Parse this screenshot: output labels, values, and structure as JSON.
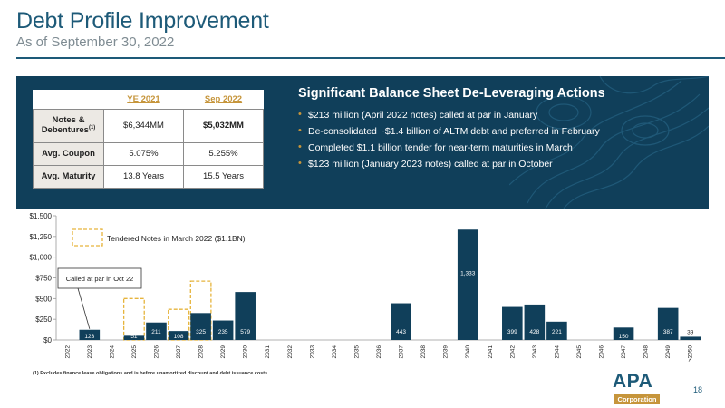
{
  "header": {
    "title": "Debt Profile Improvement",
    "subtitle": "As of September 30, 2022"
  },
  "stats_table": {
    "columns": [
      "YE 2021",
      "Sep 2022"
    ],
    "rows": [
      {
        "label": "Notes & Debentures",
        "footnote_mark": "(1)",
        "ye2021": "$6,344MM",
        "sep2022": "$5,032MM"
      },
      {
        "label": "Avg. Coupon",
        "footnote_mark": "",
        "ye2021": "5.075%",
        "sep2022": "5.255%"
      },
      {
        "label": "Avg. Maturity",
        "footnote_mark": "",
        "ye2021": "13.8 Years",
        "sep2022": "15.5 Years"
      }
    ]
  },
  "actions": {
    "title": "Significant Balance Sheet De-Leveraging Actions",
    "bullets": [
      "$213 million (April 2022 notes) called at par in January",
      "De-consolidated ~$1.4 billion of ALTM debt and preferred in February",
      "Completed $1.1 billion tender for near-term maturities in March",
      "$123 million (January 2023 notes) called at par in October"
    ]
  },
  "chart_data": {
    "type": "bar",
    "categories": [
      "2022",
      "2023",
      "2024",
      "2025",
      "2026",
      "2027",
      "2028",
      "2029",
      "2030",
      "2031",
      "2032",
      "2033",
      "2034",
      "2035",
      "2036",
      "2037",
      "2038",
      "2039",
      "2040",
      "2041",
      "2042",
      "2043",
      "2044",
      "2045",
      "2046",
      "2047",
      "2048",
      "2049",
      ">2050"
    ],
    "values": [
      0,
      123,
      0,
      51,
      211,
      108,
      325,
      235,
      579,
      0,
      0,
      0,
      0,
      0,
      0,
      443,
      0,
      0,
      1333,
      0,
      399,
      428,
      221,
      0,
      0,
      150,
      0,
      387,
      39
    ],
    "labels": [
      "",
      "123",
      "",
      "51",
      "211",
      "108",
      "325",
      "235",
      "579",
      "",
      "",
      "",
      "",
      "",
      "",
      "443",
      "",
      "",
      "1,333",
      "",
      "399",
      "428",
      "221",
      "",
      "",
      "150",
      "",
      "387",
      "39"
    ],
    "tendered": [
      0,
      0,
      0,
      500,
      0,
      370,
      710,
      0,
      0,
      0,
      0,
      0,
      0,
      0,
      0,
      0,
      0,
      0,
      0,
      0,
      0,
      0,
      0,
      0,
      0,
      0,
      0,
      0,
      0
    ],
    "ylim": [
      0,
      1500
    ],
    "yticks": [
      "$0",
      "$250",
      "$500",
      "$750",
      "$1,000",
      "$1,250",
      "$1,500"
    ],
    "ytick_values": [
      0,
      250,
      500,
      750,
      1000,
      1250,
      1500
    ],
    "legend_label": "Tendered Notes in March 2022 ($1.1BN)",
    "annotation": "Called at par in Oct 22",
    "bar_color": "#103f5a",
    "tendered_color": "#e6b43c"
  },
  "footnote": "(1) Excludes finance lease obligations and is before unamortized discount and debt issuance costs.",
  "logo": {
    "name": "APA",
    "sub": "Corporation"
  },
  "page_number": "18"
}
